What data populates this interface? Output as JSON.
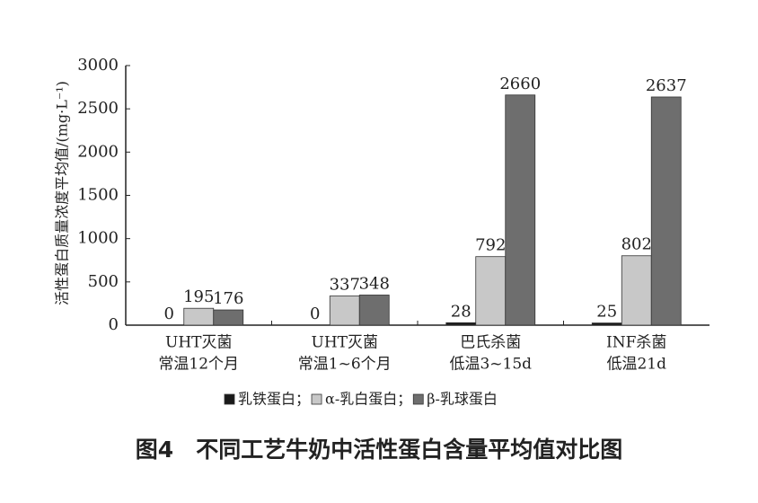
{
  "chart_data": {
    "type": "bar",
    "title": "图4　不同工艺牛奶中活性蛋白含量平均值对比图",
    "y_label": "活性蛋白质量浓度平均值/(mg·L⁻¹)",
    "categories": [
      [
        "UHT灭菌",
        "常温12个月"
      ],
      [
        "UHT灭菌",
        "常温1~6个月"
      ],
      [
        "巴氏杀菌",
        "低温3~15d"
      ],
      [
        "INF杀菌",
        "低温21d"
      ]
    ],
    "series": [
      {
        "name": "乳铁蛋白",
        "color": "#1a1a1a",
        "values": [
          0,
          0,
          28,
          25
        ]
      },
      {
        "name": "α-乳白蛋白",
        "color": "#c8c8c8",
        "values": [
          195,
          337,
          792,
          802
        ]
      },
      {
        "name": "β-乳球蛋白",
        "color": "#6e6e6e",
        "values": [
          176,
          348,
          2660,
          2637
        ]
      }
    ],
    "legend_separator": "；",
    "ylim": [
      0,
      3000
    ],
    "yticks": [
      0,
      500,
      1000,
      1500,
      2000,
      2500,
      3000
    ]
  }
}
